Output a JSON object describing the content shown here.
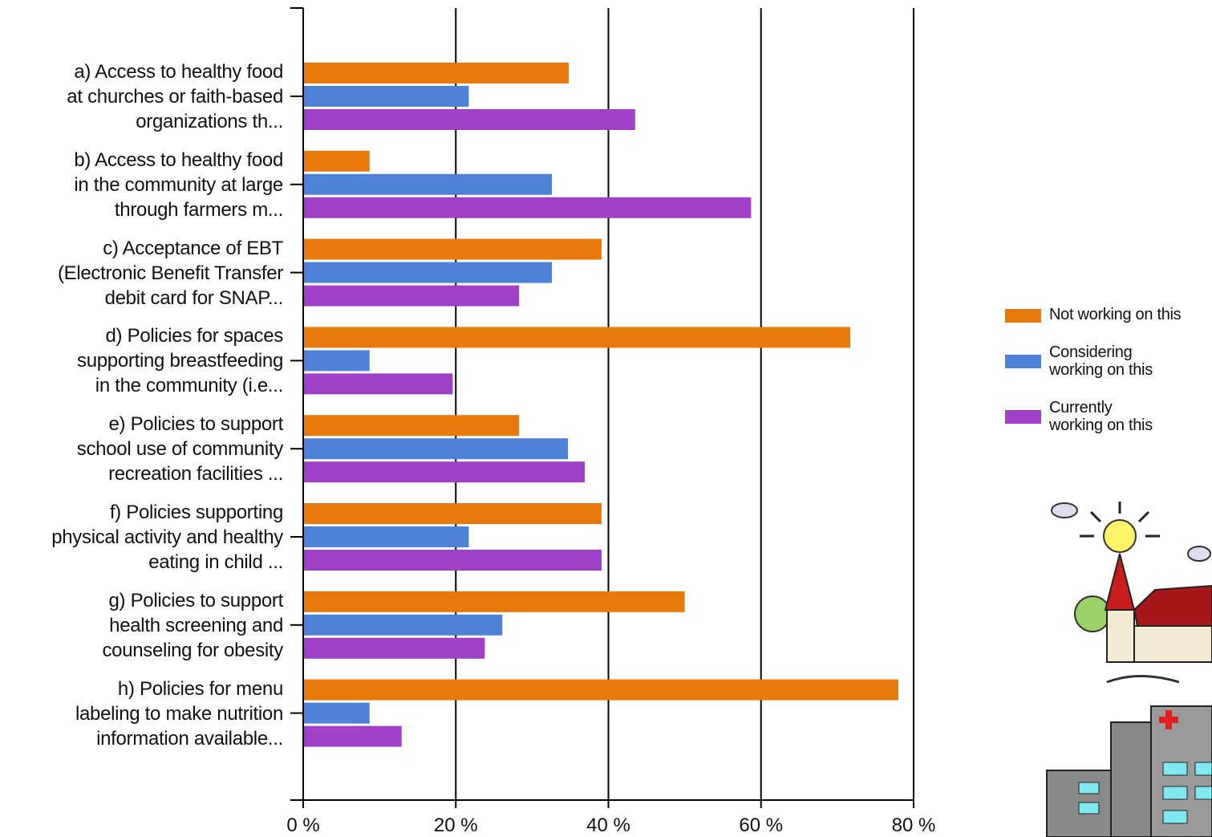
{
  "chart_data": {
    "type": "bar",
    "orientation": "horizontal",
    "categories": [
      "a) Access to healthy food\nat churches or faith-based\norganizations th...",
      "b) Access to healthy food\nin the community at large\nthrough farmers m...",
      "c) Acceptance of EBT\n(Electronic Benefit Transfer\ndebit card for SNAP...",
      "d) Policies for spaces\nsupporting breastfeeding\nin the community (i.e...",
      "e) Policies to support\nschool use of community\nrecreation facilities ...",
      "f) Policies supporting\nphysical activity and healthy\neating in child ...",
      "g) Policies to support\nhealth screening and\ncounseling for obesity",
      "h) Policies for menu\nlabeling to make nutrition\ninformation available..."
    ],
    "series": [
      {
        "name": "Not working on this",
        "color": "#e8790c",
        "values": [
          34.8,
          8.7,
          39.1,
          71.7,
          28.3,
          39.1,
          50.0,
          78.0
        ]
      },
      {
        "name": "Considering\nworking on this",
        "color": "#4f81d9",
        "values": [
          21.7,
          32.6,
          32.6,
          8.7,
          34.7,
          21.7,
          26.1,
          8.7
        ]
      },
      {
        "name": "Currently\nworking on this",
        "color": "#a03fc8",
        "values": [
          43.5,
          58.7,
          28.3,
          19.6,
          36.9,
          39.1,
          23.8,
          12.9
        ]
      }
    ],
    "xlim": [
      0,
      80
    ],
    "xticks": [
      {
        "value": 0,
        "label": "0 %"
      },
      {
        "value": 20,
        "label": "20 %"
      },
      {
        "value": 40,
        "label": "40 %"
      },
      {
        "value": 60,
        "label": "60 %"
      },
      {
        "value": 80,
        "label": "80 %"
      }
    ],
    "grid": true,
    "legend": "right"
  }
}
